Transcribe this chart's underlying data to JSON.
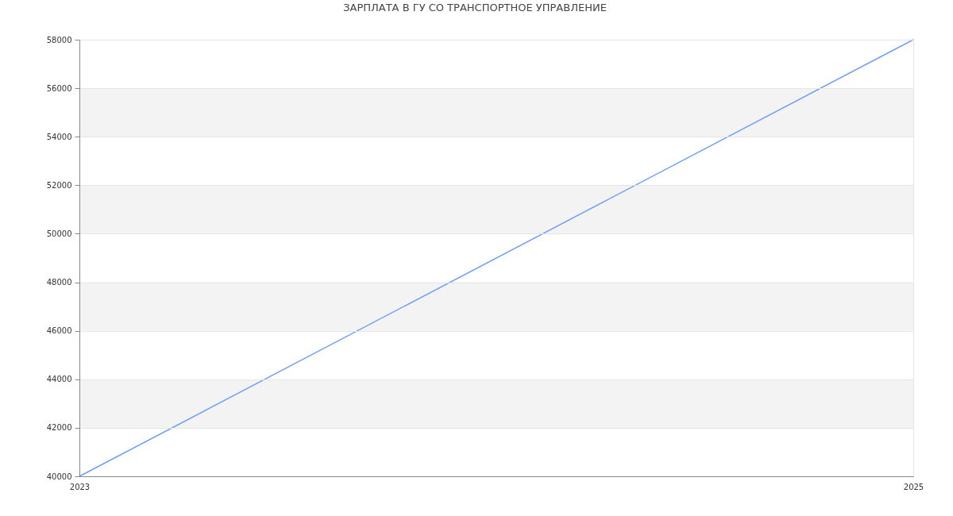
{
  "chart_data": {
    "type": "line",
    "title": "ЗАРПЛАТА В ГУ СО ТРАНСПОРТНОЕ УПРАВЛЕНИЕ",
    "x": [
      2023,
      2025
    ],
    "series": [
      {
        "color": "#6f9ef8",
        "values": [
          40000,
          58000
        ]
      }
    ],
    "xlim": [
      2023,
      2025
    ],
    "xticks": [
      2023,
      2025
    ],
    "ylim": [
      40000,
      58000
    ],
    "yticks": [
      40000,
      42000,
      44000,
      46000,
      48000,
      50000,
      52000,
      54000,
      56000,
      58000
    ],
    "grid": true,
    "bands": [
      {
        "axis": "y",
        "from": 42000,
        "to": 44000,
        "color": "#f3f3f3"
      },
      {
        "axis": "y",
        "from": 46000,
        "to": 48000,
        "color": "#f3f3f3"
      },
      {
        "axis": "y",
        "from": 50000,
        "to": 52000,
        "color": "#f3f3f3"
      },
      {
        "axis": "y",
        "from": 54000,
        "to": 56000,
        "color": "#f3f3f3"
      }
    ]
  }
}
